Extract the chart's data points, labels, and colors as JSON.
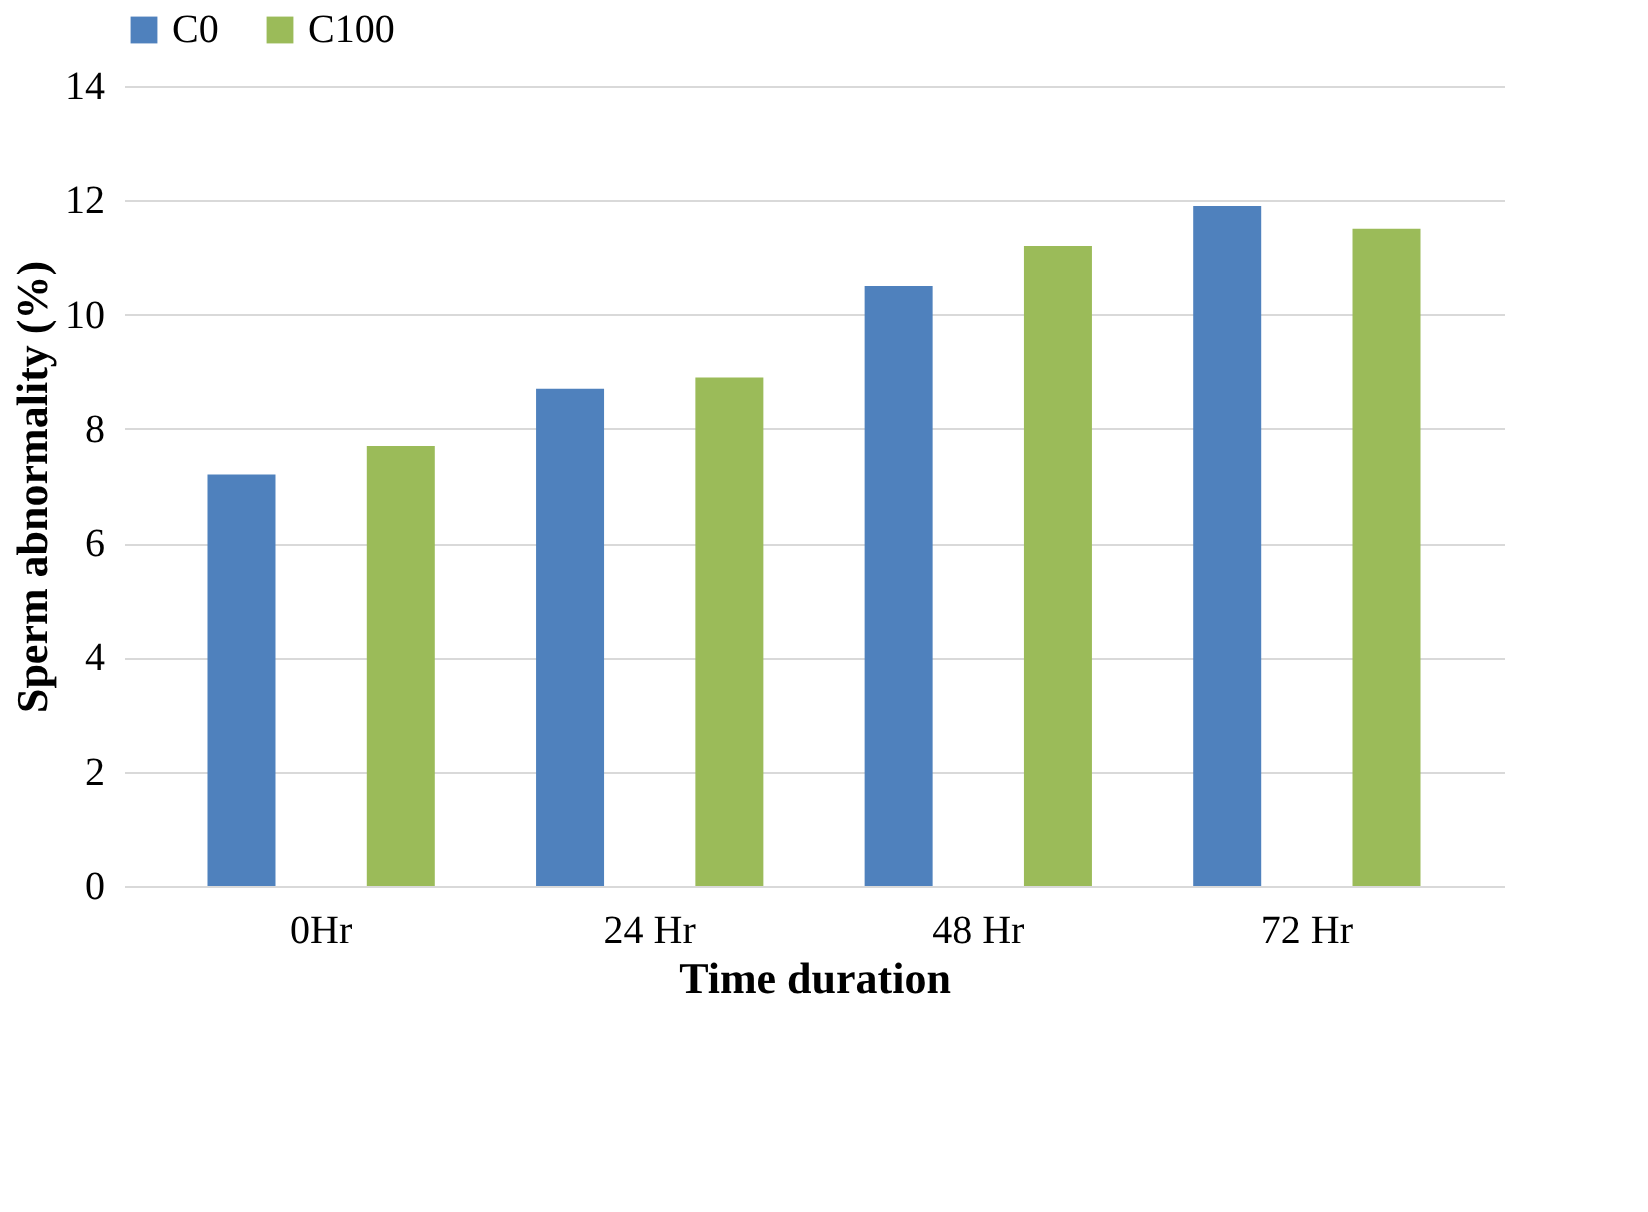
{
  "chart_data": {
    "type": "bar",
    "xlabel": "Time duration",
    "ylabel": "Sperm abnormality (%)",
    "categories": [
      "0Hr",
      "24 Hr",
      "48 Hr",
      "72 Hr"
    ],
    "series": [
      {
        "name": "C0",
        "color": "#4f81bd",
        "values": [
          7.2,
          8.7,
          10.5,
          11.9
        ]
      },
      {
        "name": "C100",
        "color": "#9bbb59",
        "values": [
          7.7,
          8.9,
          11.2,
          11.5
        ]
      }
    ],
    "ylim": [
      0,
      14
    ],
    "yticks": [
      0,
      2,
      4,
      6,
      8,
      10,
      12,
      14
    ],
    "grid": "y",
    "legend": "top"
  }
}
